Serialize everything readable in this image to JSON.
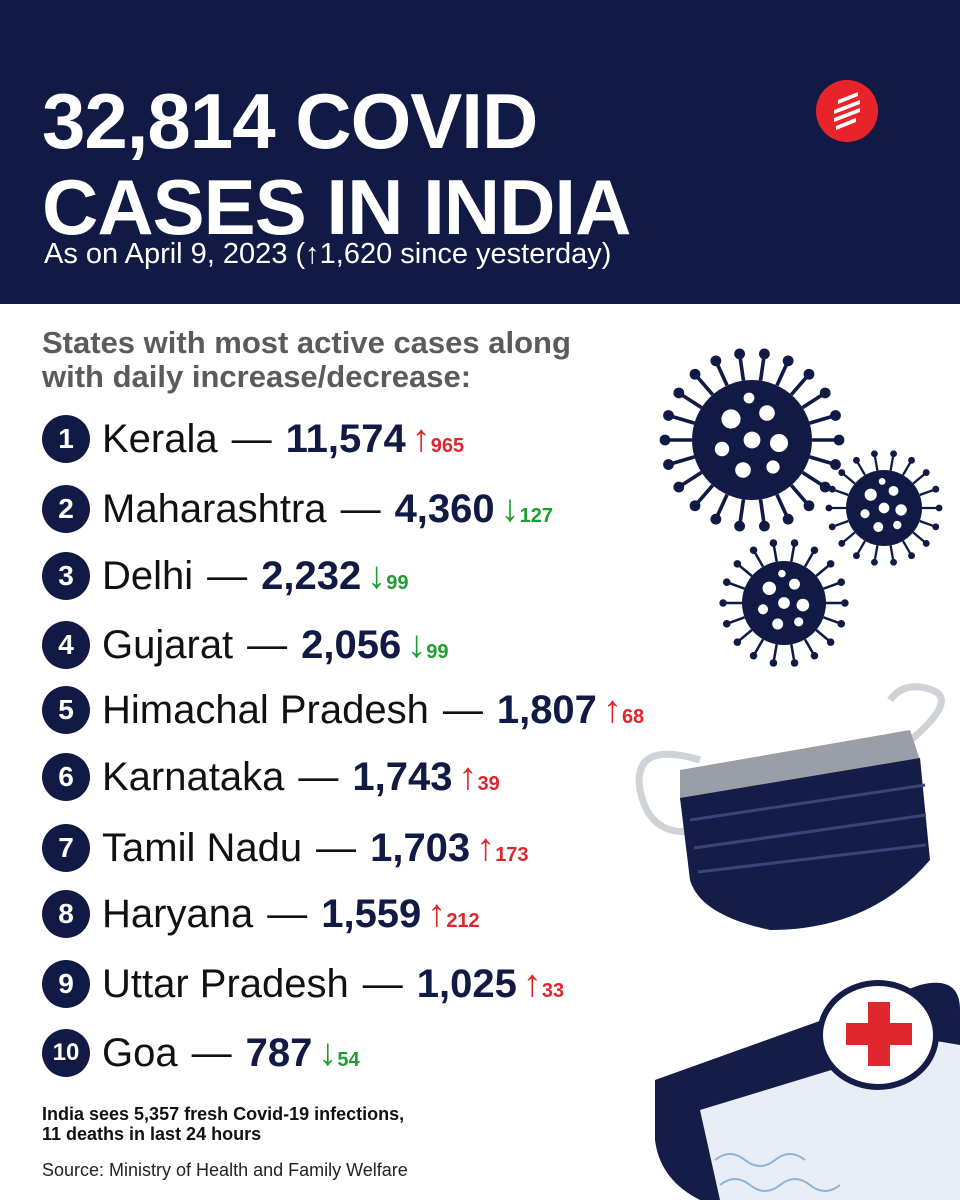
{
  "header": {
    "title_line1": "32,814 COVID",
    "title_line2": "CASES IN INDIA",
    "subtitle": "As on April 9, 2023 (↑1,620 since yesterday)"
  },
  "section": {
    "heading_line1": "States with most active cases along",
    "heading_line2": "with daily increase/decrease:"
  },
  "states": [
    {
      "rank": "1",
      "name": "Kerala",
      "cases": "11,574",
      "direction": "up",
      "arrow": "↑",
      "change": "965"
    },
    {
      "rank": "2",
      "name": "Maharashtra",
      "cases": "4,360",
      "direction": "down",
      "arrow": "↓",
      "change": "127"
    },
    {
      "rank": "3",
      "name": "Delhi",
      "cases": "2,232",
      "direction": "down",
      "arrow": "↓",
      "change": "99"
    },
    {
      "rank": "4",
      "name": "Gujarat",
      "cases": "2,056",
      "direction": "down",
      "arrow": "↓",
      "change": "99"
    },
    {
      "rank": "5",
      "name": "Himachal Pradesh",
      "cases": "1,807",
      "direction": "up",
      "arrow": "↑",
      "change": "68"
    },
    {
      "rank": "6",
      "name": "Karnataka",
      "cases": "1,743",
      "direction": "up",
      "arrow": "↑",
      "change": "39"
    },
    {
      "rank": "7",
      "name": "Tamil Nadu",
      "cases": "1,703",
      "direction": "up",
      "arrow": "↑",
      "change": "173"
    },
    {
      "rank": "8",
      "name": "Haryana",
      "cases": "1,559",
      "direction": "up",
      "arrow": "↑",
      "change": "212"
    },
    {
      "rank": "9",
      "name": "Uttar Pradesh",
      "cases": "1,025",
      "direction": "up",
      "arrow": "↑",
      "change": "33"
    },
    {
      "rank": "10",
      "name": "Goa",
      "cases": "787",
      "direction": "down",
      "arrow": "↓",
      "change": "54"
    }
  ],
  "dash": "—",
  "footnote": {
    "line1": "India sees 5,357 fresh Covid-19 infections,",
    "line2": "11 deaths in last 24 hours"
  },
  "source": "Source: Ministry of Health and Family Welfare",
  "colors": {
    "navy": "#101a44",
    "up": "#e0262d",
    "down": "#1d9e2e",
    "logo": "#e8232a"
  },
  "icons": [
    "publisher-logo-icon",
    "virus-icon",
    "face-mask-icon",
    "medical-card-icon"
  ]
}
